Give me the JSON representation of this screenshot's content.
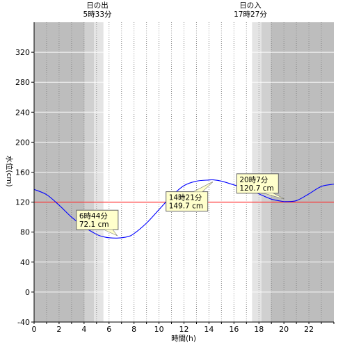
{
  "chart_data": {
    "type": "line",
    "xlabel": "時間(h)",
    "ylabel": "水位(cm)",
    "xlim": [
      0,
      24
    ],
    "ylim": [
      -40,
      360
    ],
    "x_ticks": [
      0,
      2,
      4,
      6,
      8,
      10,
      12,
      14,
      16,
      18,
      20,
      22
    ],
    "y_ticks": [
      -40,
      0,
      40,
      80,
      120,
      160,
      200,
      240,
      280,
      320
    ],
    "reference_line": {
      "y": 120,
      "color": "#ff0000"
    },
    "sunrise": {
      "title": "日の出",
      "time_label": "5時33分",
      "hour": 5.55
    },
    "sunset": {
      "title": "日の入",
      "time_label": "17時27分",
      "hour": 17.45
    },
    "series": [
      {
        "color": "#0000ff",
        "x": [
          0,
          1,
          2,
          3,
          4,
          5,
          5.5,
          6,
          6.73,
          7.5,
          8,
          9,
          10,
          11,
          12,
          13,
          14,
          14.35,
          15,
          16,
          17,
          18,
          19,
          20,
          20.12,
          21,
          22,
          23,
          24
        ],
        "y": [
          137,
          130,
          116,
          100,
          87,
          77,
          74,
          72.5,
          72.1,
          74,
          78,
          92,
          110,
          128,
          142,
          148,
          149.5,
          149.7,
          148,
          143,
          138,
          131,
          124,
          120.7,
          120.7,
          122,
          131,
          141,
          144
        ]
      }
    ],
    "annotations": [
      {
        "line1": "6時44分",
        "line2": "72.1 cm",
        "x": 6.73,
        "y": 72.1
      },
      {
        "line1": "14時21分",
        "line2": "149.7 cm",
        "x": 14.35,
        "y": 149.7
      },
      {
        "line1": "20時7分",
        "line2": "120.7 cm",
        "x": 20.12,
        "y": 120.7
      }
    ]
  }
}
